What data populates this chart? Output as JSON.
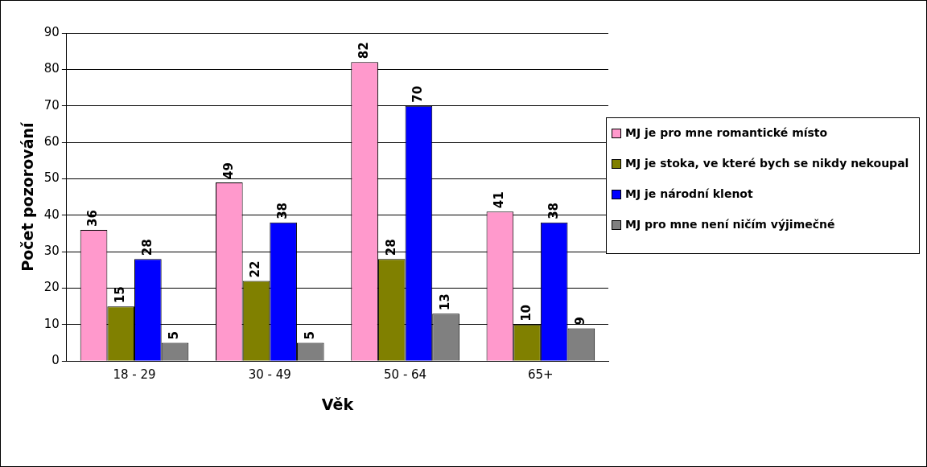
{
  "chart_data": {
    "type": "bar",
    "xlabel": "Věk",
    "ylabel": "Počet pozorování",
    "categories": [
      "18 - 29",
      "30 - 49",
      "50 - 64",
      "65+"
    ],
    "series": [
      {
        "name": "MJ je pro mne romantické místo",
        "color": "#ff99cc",
        "values": [
          36,
          49,
          82,
          41
        ]
      },
      {
        "name": "MJ je stoka, ve které bych se nikdy nekoupal",
        "color": "#808000",
        "values": [
          15,
          22,
          28,
          10
        ]
      },
      {
        "name": "MJ je národní klenot",
        "color": "#0000ff",
        "values": [
          28,
          38,
          70,
          38
        ]
      },
      {
        "name": "MJ pro mne není ničím výjimečné",
        "color": "#808080",
        "values": [
          5,
          5,
          13,
          9
        ]
      }
    ],
    "ylim": [
      0,
      90
    ],
    "yticks": [
      0,
      10,
      20,
      30,
      40,
      50,
      60,
      70,
      80,
      90
    ],
    "grid": "y",
    "legend": "right",
    "data_labels": true
  }
}
